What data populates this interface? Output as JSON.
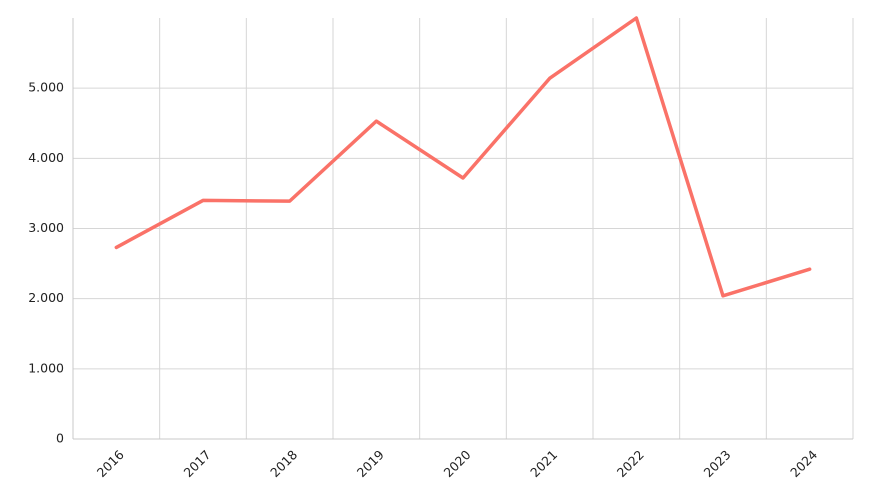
{
  "chart_data": {
    "type": "line",
    "categories": [
      "2016",
      "2017",
      "2018",
      "2019",
      "2020",
      "2021",
      "2022",
      "2023",
      "2024"
    ],
    "series": [
      {
        "color": "#fa7268",
        "values": [
          2730,
          3400,
          3390,
          4530,
          3720,
          5140,
          6000,
          2040,
          2420
        ]
      }
    ],
    "ylim": [
      0,
      6000
    ],
    "yticks": [
      0,
      {
        "value": 1000,
        "label": "1.000"
      },
      {
        "value": 2000,
        "label": "2.000"
      },
      {
        "value": 3000,
        "label": "3.000"
      },
      {
        "value": 4000,
        "label": "4.000"
      },
      {
        "value": 5000,
        "label": "5.000"
      }
    ],
    "grid": true
  }
}
